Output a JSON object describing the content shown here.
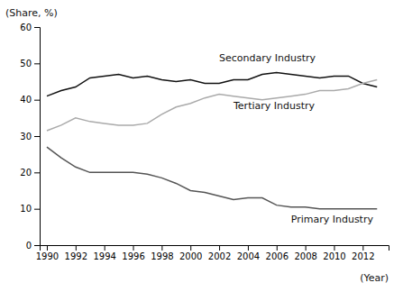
{
  "chart_data": {
    "type": "line",
    "xlabel": "(Year)",
    "ylabel": "(Share, %)",
    "x": [
      1990,
      1991,
      1992,
      1993,
      1994,
      1995,
      1996,
      1997,
      1998,
      1999,
      2000,
      2001,
      2002,
      2003,
      2004,
      2005,
      2006,
      2007,
      2008,
      2009,
      2010,
      2011,
      2012,
      2013
    ],
    "series": [
      {
        "color": "#111111",
        "values": [
          41.0,
          42.5,
          43.5,
          46.0,
          46.5,
          47.0,
          46.0,
          46.5,
          45.5,
          45.0,
          45.5,
          44.5,
          44.5,
          45.5,
          45.5,
          47.0,
          47.5,
          47.0,
          46.5,
          46.0,
          46.5,
          46.5,
          44.5,
          43.5
        ]
      },
      {
        "color": "#aaaaaa",
        "values": [
          31.5,
          33.0,
          35.0,
          34.0,
          33.5,
          33.0,
          33.0,
          33.5,
          36.0,
          38.0,
          39.0,
          40.5,
          41.5,
          41.0,
          40.5,
          40.0,
          40.5,
          41.0,
          41.5,
          42.5,
          42.5,
          43.0,
          44.5,
          45.5
        ]
      },
      {
        "color": "#555555",
        "values": [
          27.0,
          24.0,
          21.5,
          20.0,
          20.0,
          20.0,
          20.0,
          19.5,
          18.5,
          17.0,
          15.0,
          14.5,
          13.5,
          12.5,
          13.0,
          13.0,
          11.0,
          10.5,
          10.5,
          10.0,
          10.0,
          10.0,
          10.0,
          10.0
        ]
      }
    ],
    "annotations": [
      {
        "text": "Secondary Industry",
        "x": 2002.0,
        "y": 50.5,
        "color": "#111111"
      },
      {
        "text": "Tertiary Industry",
        "x": 2003.0,
        "y": 37.5,
        "color": "#111111"
      },
      {
        "text": "Primary Industry",
        "x": 2007.0,
        "y": 6.2,
        "color": "#111111"
      }
    ],
    "xlim": [
      1989.5,
      2013.8
    ],
    "xticks": [
      1990,
      1992,
      1994,
      1996,
      1998,
      2000,
      2002,
      2004,
      2006,
      2008,
      2010,
      2012
    ],
    "ylim": [
      0,
      60
    ],
    "yticks": [
      0,
      10,
      20,
      30,
      40,
      50,
      60
    ]
  }
}
